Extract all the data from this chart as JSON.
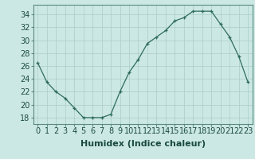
{
  "x": [
    0,
    1,
    2,
    3,
    4,
    5,
    6,
    7,
    8,
    9,
    10,
    11,
    12,
    13,
    14,
    15,
    16,
    17,
    18,
    19,
    20,
    21,
    22,
    23
  ],
  "y": [
    26.5,
    23.5,
    22,
    21,
    19.5,
    18,
    18,
    18,
    18.5,
    22,
    25,
    27,
    29.5,
    30.5,
    31.5,
    33,
    33.5,
    34.5,
    34.5,
    34.5,
    32.5,
    30.5,
    27.5,
    23.5
  ],
  "line_color": "#2e6b5e",
  "marker": "+",
  "bg_color": "#cce8e4",
  "grid_color": "#aaccca",
  "xlabel": "Humidex (Indice chaleur)",
  "ylabel_ticks": [
    18,
    20,
    22,
    24,
    26,
    28,
    30,
    32,
    34
  ],
  "xlim": [
    -0.5,
    23.5
  ],
  "ylim": [
    17,
    35.5
  ],
  "xlabel_fontsize": 8,
  "tick_fontsize": 7
}
